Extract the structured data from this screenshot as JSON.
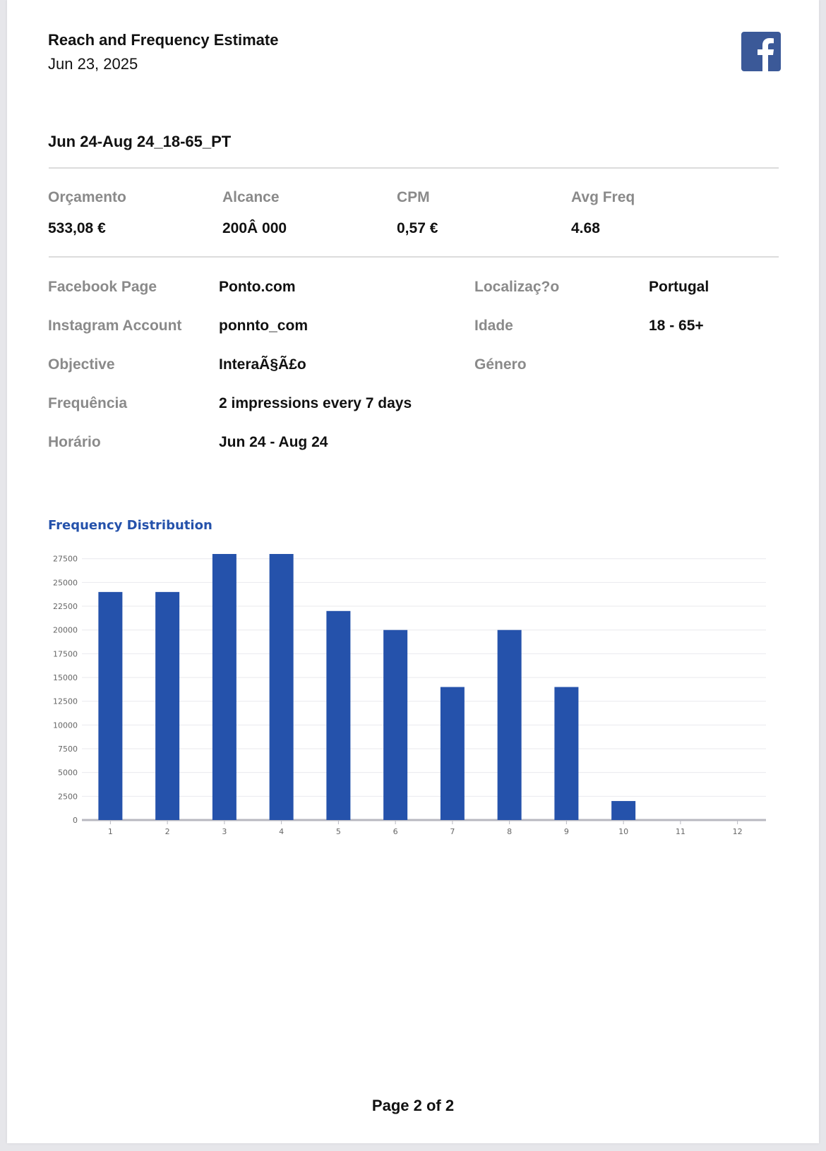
{
  "header": {
    "title": "Reach and Frequency Estimate",
    "date": "Jun 23, 2025",
    "logo_icon": "facebook-icon"
  },
  "campaign_name": "Jun 24-Aug 24_18-65_PT",
  "metrics": [
    {
      "label": "Orçamento",
      "value": "533,08 €"
    },
    {
      "label": "Alcance",
      "value": "200Â 000"
    },
    {
      "label": "CPM",
      "value": "0,57 €"
    },
    {
      "label": "Avg Freq",
      "value": "4.68"
    }
  ],
  "details_left": [
    {
      "label": "Facebook Page",
      "value": "Ponto.com"
    },
    {
      "label": "Instagram Account",
      "value": "ponnto_com"
    },
    {
      "label": "Objective",
      "value": "InteraÃ§Ã£o"
    },
    {
      "label": "Frequência",
      "value": "2 impressions every 7 days"
    },
    {
      "label": "Horário",
      "value": "Jun 24 - Aug 24"
    }
  ],
  "details_right": [
    {
      "label": "Localizaç?o",
      "value": "Portugal"
    },
    {
      "label": "Idade",
      "value": "18 - 65+"
    },
    {
      "label": "Género",
      "value": ""
    }
  ],
  "colors": {
    "bar": "#2552ab",
    "chart_title": "#2552ab",
    "brand": "#3b5998"
  },
  "chart_data": {
    "type": "bar",
    "title": "Frequency Distribution",
    "categories": [
      "1",
      "2",
      "3",
      "4",
      "5",
      "6",
      "7",
      "8",
      "9",
      "10",
      "11",
      "12"
    ],
    "values": [
      24000,
      24000,
      28000,
      28000,
      22000,
      20000,
      14000,
      20000,
      14000,
      2000,
      0,
      0
    ],
    "yticks": [
      "0",
      "2500",
      "5000",
      "7500",
      "10000",
      "12500",
      "15000",
      "17500",
      "20000",
      "22500",
      "25000",
      "27500"
    ],
    "ylim": [
      0,
      27500
    ],
    "grid": true,
    "xlabel": "",
    "ylabel": ""
  },
  "footer": {
    "page_label": "Page 2 of 2"
  }
}
